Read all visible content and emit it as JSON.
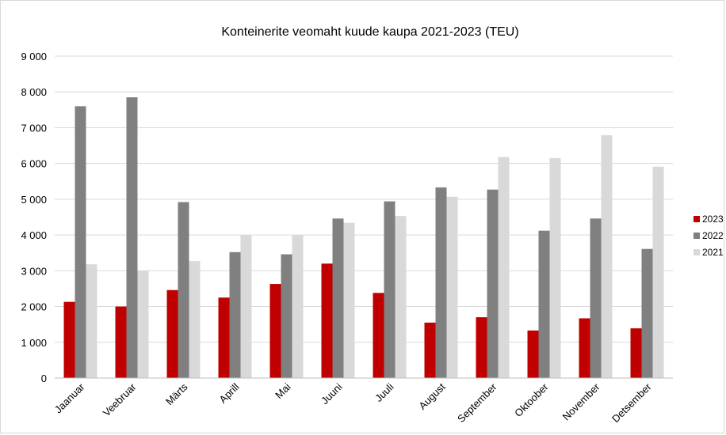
{
  "chart_data": {
    "type": "bar",
    "title": "Konteinerite veomaht kuude kaupa 2021-2023 (TEU)",
    "xlabel": "",
    "ylabel": "",
    "categories": [
      "Jaanuar",
      "Veebruar",
      "Märts",
      "Aprill",
      "Mai",
      "Juuni",
      "Juuli",
      "August",
      "September",
      "Oktoober",
      "November",
      "Detsember"
    ],
    "series": [
      {
        "name": "2023",
        "color": "#c00000",
        "values": [
          2130,
          2000,
          2460,
          2250,
          2630,
          3200,
          2380,
          1550,
          1700,
          1330,
          1670,
          1390
        ]
      },
      {
        "name": "2022",
        "color": "#808080",
        "values": [
          7600,
          7850,
          4920,
          3520,
          3460,
          4460,
          4940,
          5330,
          5270,
          4120,
          4460,
          3610
        ]
      },
      {
        "name": "2021",
        "color": "#d9d9d9",
        "values": [
          3180,
          3000,
          3270,
          3990,
          3990,
          4340,
          4530,
          5070,
          6180,
          6150,
          6790,
          5910
        ]
      }
    ],
    "ylim": [
      0,
      9000
    ],
    "yticks": [
      "0",
      "1 000",
      "2 000",
      "3 000",
      "4 000",
      "5 000",
      "6 000",
      "7 000",
      "8 000",
      "9 000"
    ],
    "grid": true,
    "legend": "right"
  }
}
